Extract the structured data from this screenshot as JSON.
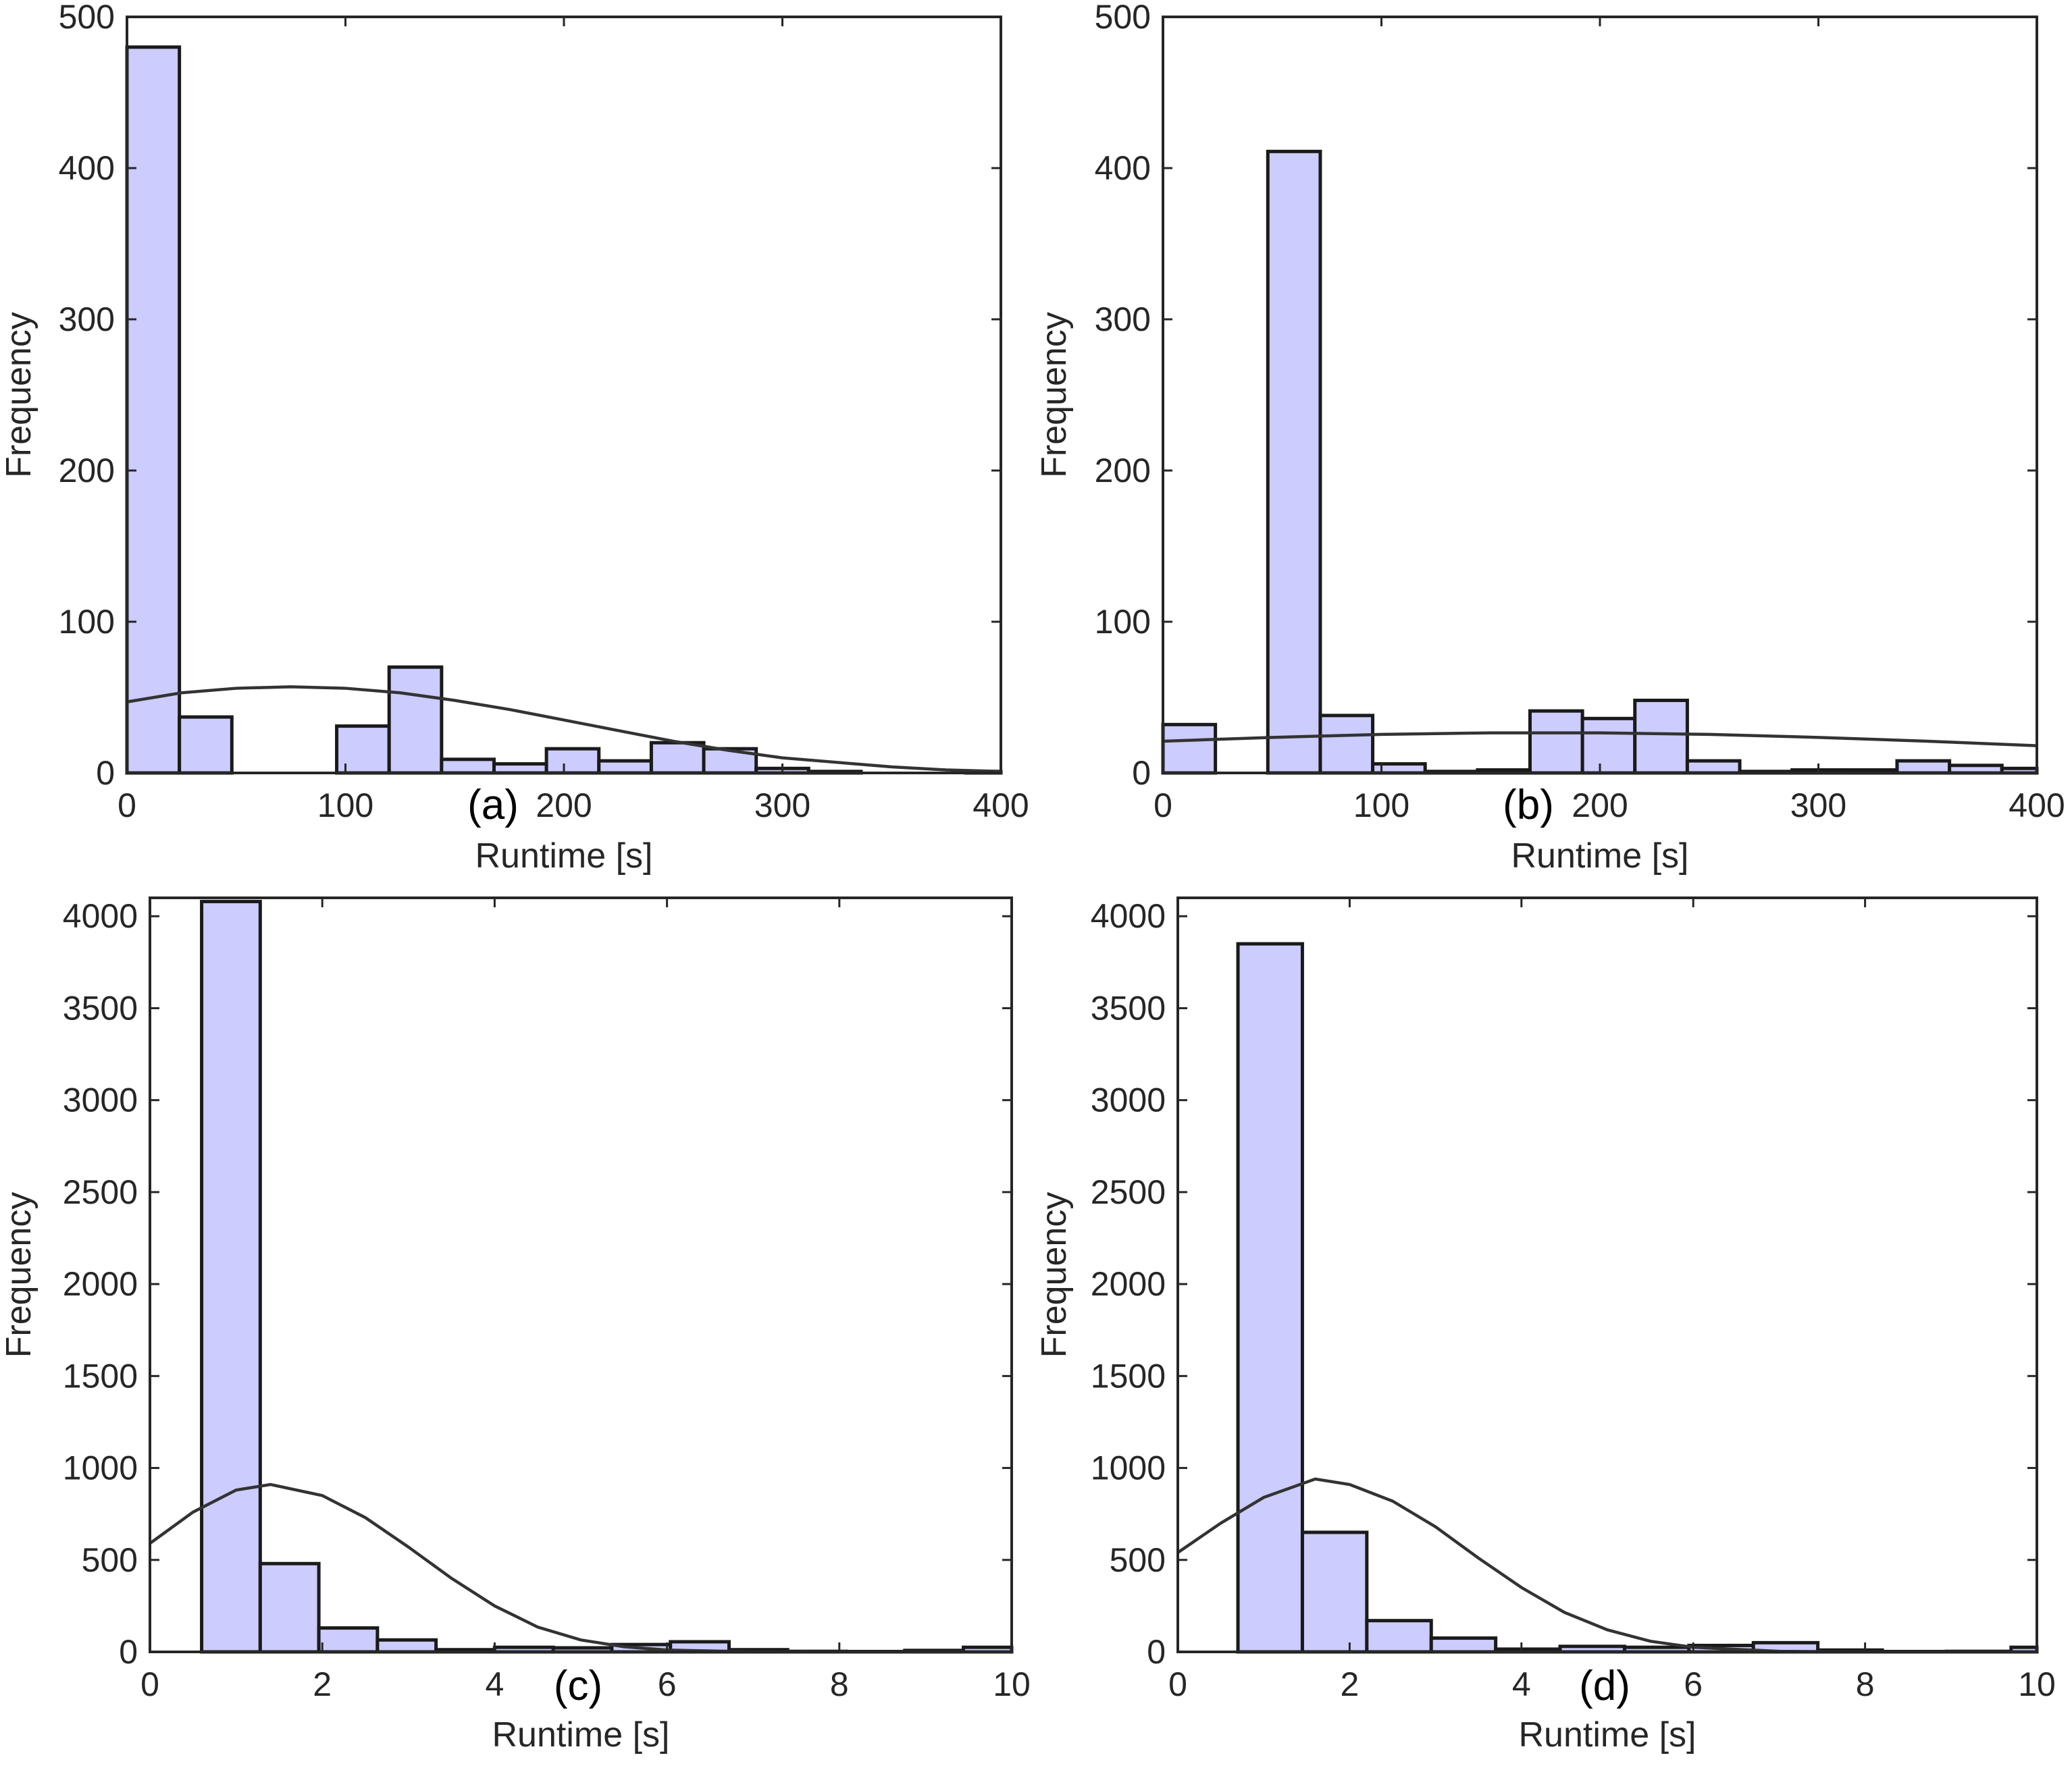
{
  "colors": {
    "bar_fill": "#ccccff",
    "bar_edge": "#1a1a1a",
    "curve": "#333333",
    "axis": "#262626"
  },
  "chart_data": [
    {
      "type": "bar",
      "panel_label": "(a)",
      "xlabel": "Runtime [s]",
      "ylabel": "Frequency",
      "xlim": [
        0,
        400
      ],
      "ylim": [
        0,
        500
      ],
      "xticks": [
        0,
        100,
        200,
        300,
        400
      ],
      "yticks": [
        0,
        100,
        200,
        300,
        400,
        500
      ],
      "bin_edges": [
        0,
        24,
        48,
        72,
        96,
        120,
        144,
        168,
        192,
        216,
        240,
        264,
        288,
        312,
        336,
        360,
        384,
        400
      ],
      "values": [
        480,
        37,
        0,
        0,
        31,
        70,
        9,
        6,
        16,
        8,
        20,
        16,
        3,
        1,
        0,
        0,
        1
      ],
      "fit_curve": {
        "x": [
          0,
          25,
          50,
          75,
          100,
          125,
          150,
          175,
          200,
          225,
          250,
          275,
          300,
          325,
          350,
          375,
          400
        ],
        "y": [
          47,
          53,
          56,
          57,
          56,
          53,
          48,
          42,
          35,
          28,
          21,
          15,
          10,
          7,
          4,
          2,
          1
        ]
      },
      "grid": false
    },
    {
      "type": "bar",
      "panel_label": "(b)",
      "xlabel": "Runtime [s]",
      "ylabel": "Frequency",
      "xlim": [
        0,
        400
      ],
      "ylim": [
        0,
        500
      ],
      "xticks": [
        0,
        100,
        200,
        300,
        400
      ],
      "yticks": [
        0,
        100,
        200,
        300,
        400,
        500
      ],
      "bin_edges": [
        0,
        24,
        48,
        72,
        96,
        120,
        144,
        168,
        192,
        216,
        240,
        264,
        288,
        312,
        336,
        360,
        384,
        400
      ],
      "values": [
        32,
        0,
        411,
        38,
        6,
        1,
        2,
        41,
        36,
        48,
        8,
        1,
        2,
        2,
        8,
        5,
        3
      ],
      "fit_curve": {
        "x": [
          0,
          50,
          100,
          150,
          200,
          250,
          300,
          350,
          400
        ],
        "y": [
          21,
          23.5,
          25.5,
          26.5,
          26.5,
          25.5,
          23.5,
          21,
          18
        ]
      },
      "grid": false
    },
    {
      "type": "bar",
      "panel_label": "(c)",
      "xlabel": "Runtime [s]",
      "ylabel": "Frequency",
      "xlim": [
        0,
        10
      ],
      "ylim": [
        0,
        4100
      ],
      "xticks": [
        0,
        2,
        4,
        6,
        8,
        10
      ],
      "yticks": [
        0,
        500,
        1000,
        1500,
        2000,
        2500,
        3000,
        3500,
        4000
      ],
      "bin_edges": [
        0.6,
        1.28,
        1.96,
        2.64,
        3.32,
        4.0,
        4.68,
        5.36,
        6.04,
        6.72,
        7.4,
        8.08,
        8.76,
        9.44,
        10.0
      ],
      "values": [
        4080,
        480,
        130,
        65,
        12,
        25,
        22,
        40,
        55,
        12,
        3,
        2,
        8,
        25
      ],
      "fit_curve": {
        "x": [
          0,
          0.5,
          1.0,
          1.4,
          2.0,
          2.5,
          3.0,
          3.5,
          4.0,
          4.5,
          5.0,
          5.5,
          6.0,
          7.0,
          8.0,
          10.0
        ],
        "y": [
          590,
          760,
          880,
          910,
          850,
          730,
          570,
          400,
          250,
          135,
          65,
          28,
          10,
          1,
          0,
          0
        ]
      },
      "grid": false
    },
    {
      "type": "bar",
      "panel_label": "(d)",
      "xlabel": "Runtime [s]",
      "ylabel": "Frequency",
      "xlim": [
        0,
        10
      ],
      "ylim": [
        0,
        4100
      ],
      "xticks": [
        0,
        2,
        4,
        6,
        8,
        10
      ],
      "yticks": [
        0,
        500,
        1000,
        1500,
        2000,
        2500,
        3000,
        3500,
        4000
      ],
      "bin_edges": [
        0.7,
        1.45,
        2.2,
        2.95,
        3.7,
        4.45,
        5.2,
        5.95,
        6.7,
        7.45,
        8.2,
        8.95,
        9.7,
        10.0
      ],
      "values": [
        3850,
        650,
        170,
        75,
        15,
        30,
        25,
        35,
        50,
        10,
        2,
        3,
        25
      ],
      "fit_curve": {
        "x": [
          0,
          0.5,
          1.0,
          1.6,
          2.0,
          2.5,
          3.0,
          3.5,
          4.0,
          4.5,
          5.0,
          5.5,
          6.0,
          7.0,
          8.0,
          10.0
        ],
        "y": [
          540,
          700,
          840,
          940,
          910,
          820,
          680,
          510,
          350,
          215,
          120,
          58,
          25,
          3,
          0,
          0
        ]
      },
      "grid": false
    }
  ]
}
